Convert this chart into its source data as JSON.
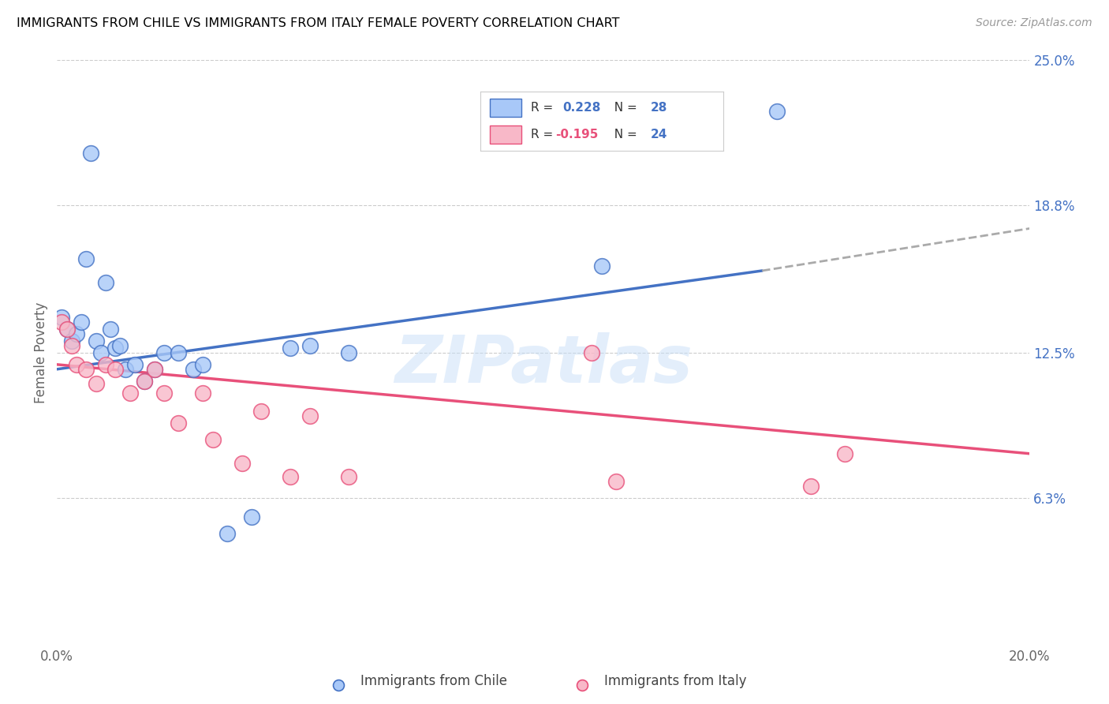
{
  "title": "IMMIGRANTS FROM CHILE VS IMMIGRANTS FROM ITALY FEMALE POVERTY CORRELATION CHART",
  "source": "Source: ZipAtlas.com",
  "ylabel": "Female Poverty",
  "x_min": 0.0,
  "x_max": 0.2,
  "y_min": 0.0,
  "y_max": 0.25,
  "y_tick_labels_right": [
    "25.0%",
    "18.8%",
    "12.5%",
    "6.3%"
  ],
  "y_tick_vals_right": [
    0.25,
    0.188,
    0.125,
    0.063
  ],
  "chile_R": "0.228",
  "chile_N": "28",
  "italy_R": "-0.195",
  "italy_N": "24",
  "chile_color": "#a8c8f8",
  "chile_line_color": "#4472c4",
  "italy_color": "#f8b8c8",
  "italy_line_color": "#e8507a",
  "legend_label_chile": "Immigrants from Chile",
  "legend_label_italy": "Immigrants from Italy",
  "watermark": "ZIPatlas",
  "chile_line_x0": 0.0,
  "chile_line_y0": 0.118,
  "chile_line_x1": 0.145,
  "chile_line_y1": 0.16,
  "chile_line_x2": 0.2,
  "chile_line_y2": 0.178,
  "italy_line_x0": 0.0,
  "italy_line_y0": 0.12,
  "italy_line_x1": 0.2,
  "italy_line_y1": 0.082,
  "chile_points_x": [
    0.001,
    0.002,
    0.003,
    0.004,
    0.005,
    0.006,
    0.007,
    0.008,
    0.009,
    0.01,
    0.011,
    0.012,
    0.013,
    0.014,
    0.016,
    0.018,
    0.02,
    0.022,
    0.025,
    0.028,
    0.03,
    0.035,
    0.04,
    0.048,
    0.052,
    0.06,
    0.112,
    0.148
  ],
  "chile_points_y": [
    0.14,
    0.135,
    0.13,
    0.133,
    0.138,
    0.165,
    0.21,
    0.13,
    0.125,
    0.155,
    0.135,
    0.127,
    0.128,
    0.118,
    0.12,
    0.113,
    0.118,
    0.125,
    0.125,
    0.118,
    0.12,
    0.048,
    0.055,
    0.127,
    0.128,
    0.125,
    0.162,
    0.228
  ],
  "italy_points_x": [
    0.001,
    0.002,
    0.003,
    0.004,
    0.006,
    0.008,
    0.01,
    0.012,
    0.015,
    0.018,
    0.02,
    0.022,
    0.025,
    0.03,
    0.032,
    0.038,
    0.042,
    0.048,
    0.052,
    0.06,
    0.11,
    0.115,
    0.155,
    0.162
  ],
  "italy_points_y": [
    0.138,
    0.135,
    0.128,
    0.12,
    0.118,
    0.112,
    0.12,
    0.118,
    0.108,
    0.113,
    0.118,
    0.108,
    0.095,
    0.108,
    0.088,
    0.078,
    0.1,
    0.072,
    0.098,
    0.072,
    0.125,
    0.07,
    0.068,
    0.082
  ]
}
